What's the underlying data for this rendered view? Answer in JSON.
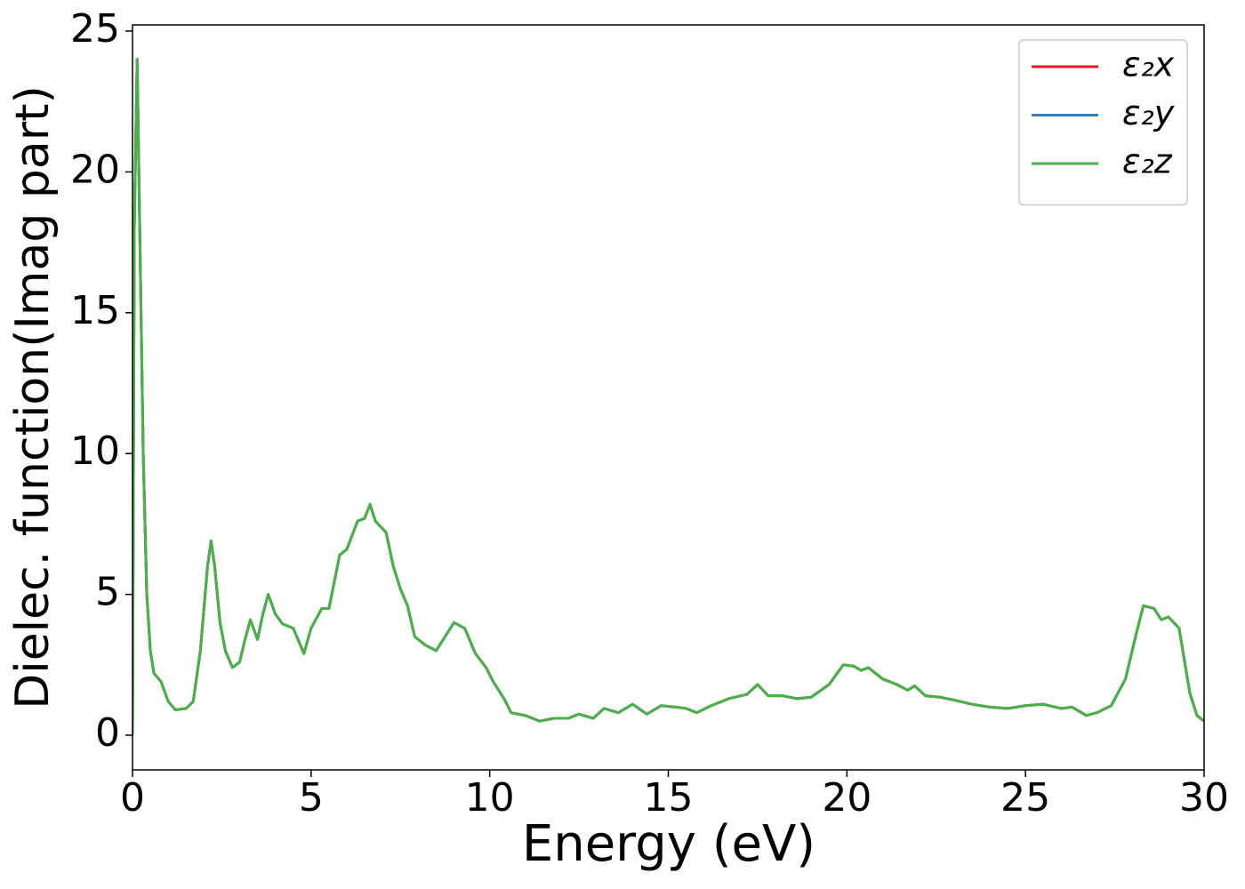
{
  "chart_data": {
    "type": "line",
    "xlabel": "Energy (eV)",
    "ylabel": "Dielec. function(Imag part)",
    "x": [
      0,
      0.05,
      0.13,
      0.3,
      0.4,
      0.5,
      0.6,
      0.8,
      1.0,
      1.2,
      1.5,
      1.7,
      1.9,
      2.1,
      2.2,
      2.3,
      2.45,
      2.6,
      2.8,
      3.0,
      3.15,
      3.3,
      3.5,
      3.65,
      3.8,
      4.0,
      4.2,
      4.5,
      4.8,
      5.0,
      5.3,
      5.5,
      5.8,
      6.0,
      6.3,
      6.5,
      6.65,
      6.8,
      7.1,
      7.3,
      7.5,
      7.7,
      7.9,
      8.2,
      8.5,
      8.8,
      9.0,
      9.3,
      9.6,
      9.9,
      10.1,
      10.4,
      10.6,
      11.0,
      11.4,
      11.8,
      12.2,
      12.5,
      12.9,
      13.2,
      13.6,
      14.0,
      14.4,
      14.8,
      15.2,
      15.5,
      15.8,
      16.2,
      16.7,
      17.2,
      17.5,
      17.8,
      18.2,
      18.6,
      19.0,
      19.5,
      19.9,
      20.2,
      20.4,
      20.6,
      21.0,
      21.4,
      21.7,
      21.9,
      22.2,
      22.6,
      23.0,
      23.5,
      24.0,
      24.5,
      25.0,
      25.5,
      26.0,
      26.3,
      26.7,
      27.0,
      27.4,
      27.8,
      28.1,
      28.3,
      28.6,
      28.8,
      29.0,
      29.3,
      29.6,
      29.8,
      30.0
    ],
    "series": [
      {
        "name": "ε₂x",
        "color": "#e41a1c",
        "values": [
          0,
          18,
          24,
          10,
          5,
          3,
          2.2,
          1.9,
          1.2,
          0.9,
          0.95,
          1.2,
          3,
          6,
          6.9,
          6,
          4,
          3,
          2.4,
          2.6,
          3.4,
          4.1,
          3.4,
          4.3,
          5.0,
          4.3,
          3.95,
          3.8,
          2.9,
          3.8,
          4.5,
          4.5,
          6.4,
          6.6,
          7.6,
          7.7,
          8.2,
          7.6,
          7.2,
          6.0,
          5.2,
          4.6,
          3.5,
          3.2,
          3.0,
          3.6,
          4.0,
          3.8,
          2.9,
          2.4,
          1.9,
          1.3,
          0.8,
          0.7,
          0.5,
          0.6,
          0.6,
          0.75,
          0.6,
          0.95,
          0.8,
          1.1,
          0.75,
          1.05,
          1.0,
          0.95,
          0.8,
          1.05,
          1.3,
          1.45,
          1.8,
          1.4,
          1.4,
          1.3,
          1.35,
          1.8,
          2.5,
          2.45,
          2.3,
          2.4,
          2.0,
          1.8,
          1.6,
          1.75,
          1.4,
          1.35,
          1.25,
          1.1,
          1.0,
          0.95,
          1.05,
          1.1,
          0.95,
          1.0,
          0.7,
          0.8,
          1.05,
          2.0,
          3.6,
          4.6,
          4.5,
          4.1,
          4.2,
          3.8,
          1.5,
          0.7,
          0.5
        ]
      },
      {
        "name": "ε₂y",
        "color": "#377eb8",
        "values": [
          0,
          18,
          24,
          10,
          5,
          3,
          2.2,
          1.9,
          1.2,
          0.9,
          0.95,
          1.2,
          3,
          6,
          6.9,
          6,
          4,
          3,
          2.4,
          2.6,
          3.4,
          4.1,
          3.4,
          4.3,
          5.0,
          4.3,
          3.95,
          3.8,
          2.9,
          3.8,
          4.5,
          4.5,
          6.4,
          6.6,
          7.6,
          7.7,
          8.2,
          7.6,
          7.2,
          6.0,
          5.2,
          4.6,
          3.5,
          3.2,
          3.0,
          3.6,
          4.0,
          3.8,
          2.9,
          2.4,
          1.9,
          1.3,
          0.8,
          0.7,
          0.5,
          0.6,
          0.6,
          0.75,
          0.6,
          0.95,
          0.8,
          1.1,
          0.75,
          1.05,
          1.0,
          0.95,
          0.8,
          1.05,
          1.3,
          1.45,
          1.8,
          1.4,
          1.4,
          1.3,
          1.35,
          1.8,
          2.5,
          2.45,
          2.3,
          2.4,
          2.0,
          1.8,
          1.6,
          1.75,
          1.4,
          1.35,
          1.25,
          1.1,
          1.0,
          0.95,
          1.05,
          1.1,
          0.95,
          1.0,
          0.7,
          0.8,
          1.05,
          2.0,
          3.6,
          4.6,
          4.5,
          4.1,
          4.2,
          3.8,
          1.5,
          0.7,
          0.5
        ]
      },
      {
        "name": "ε₂z",
        "color": "#4daf4a",
        "values": [
          0,
          18,
          24,
          10,
          5,
          3,
          2.2,
          1.9,
          1.2,
          0.9,
          0.95,
          1.2,
          3,
          6,
          6.9,
          6,
          4,
          3,
          2.4,
          2.6,
          3.4,
          4.1,
          3.4,
          4.3,
          5.0,
          4.3,
          3.95,
          3.8,
          2.9,
          3.8,
          4.5,
          4.5,
          6.4,
          6.6,
          7.6,
          7.7,
          8.2,
          7.6,
          7.2,
          6.0,
          5.2,
          4.6,
          3.5,
          3.2,
          3.0,
          3.6,
          4.0,
          3.8,
          2.9,
          2.4,
          1.9,
          1.3,
          0.8,
          0.7,
          0.5,
          0.6,
          0.6,
          0.75,
          0.6,
          0.95,
          0.8,
          1.1,
          0.75,
          1.05,
          1.0,
          0.95,
          0.8,
          1.05,
          1.3,
          1.45,
          1.8,
          1.4,
          1.4,
          1.3,
          1.35,
          1.8,
          2.5,
          2.45,
          2.3,
          2.4,
          2.0,
          1.8,
          1.6,
          1.75,
          1.4,
          1.35,
          1.25,
          1.1,
          1.0,
          0.95,
          1.05,
          1.1,
          0.95,
          1.0,
          0.7,
          0.8,
          1.05,
          2.0,
          3.6,
          4.6,
          4.5,
          4.1,
          4.2,
          3.8,
          1.5,
          0.7,
          0.5
        ]
      }
    ],
    "xlim": [
      0,
      30
    ],
    "xticks": [
      0,
      5,
      10,
      15,
      20,
      25,
      30
    ],
    "ylim": [
      -1.23,
      25.22
    ],
    "yticks": [
      0,
      5,
      10,
      15,
      20,
      25
    ],
    "legend": "upper right",
    "grid": false
  }
}
